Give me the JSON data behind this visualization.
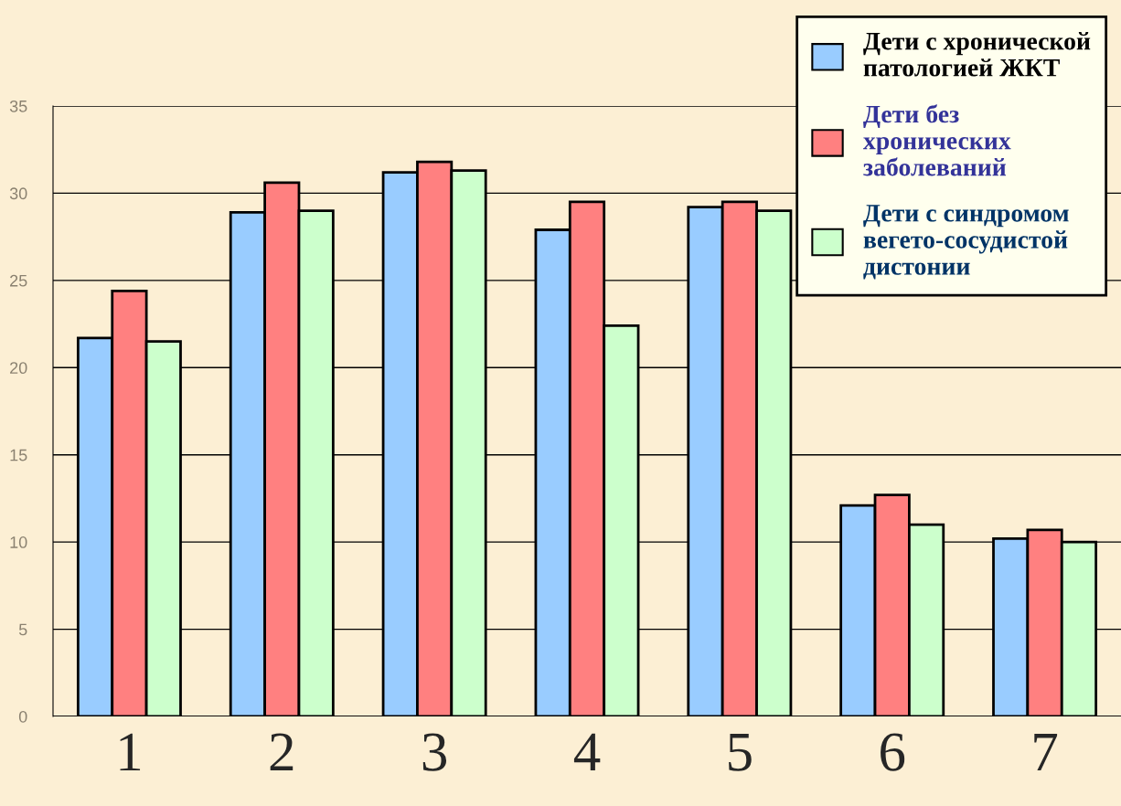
{
  "chart_data": {
    "type": "bar",
    "categories": [
      "1",
      "2",
      "3",
      "4",
      "5",
      "6",
      "7"
    ],
    "series": [
      {
        "name": "Дети с хронической\nпатологией ЖКТ",
        "color": "#99ccff",
        "values": [
          21.7,
          28.9,
          31.2,
          27.9,
          29.2,
          12.1,
          10.2
        ]
      },
      {
        "name": "Дети без\nхронических\nзаболеваний",
        "color": "#ff8080",
        "values": [
          24.4,
          30.6,
          31.8,
          29.5,
          29.5,
          12.7,
          10.7
        ]
      },
      {
        "name": "Дети с синдромом\nвегето-сосудистой\nдистонии",
        "color": "#ccffcc",
        "values": [
          21.5,
          29.0,
          31.3,
          22.4,
          29.0,
          11.0,
          10.0
        ]
      }
    ],
    "ylim": [
      0,
      35
    ],
    "yticks": [
      0,
      5,
      10,
      15,
      20,
      25,
      30,
      35
    ],
    "grid": "y",
    "legend": "top right"
  }
}
